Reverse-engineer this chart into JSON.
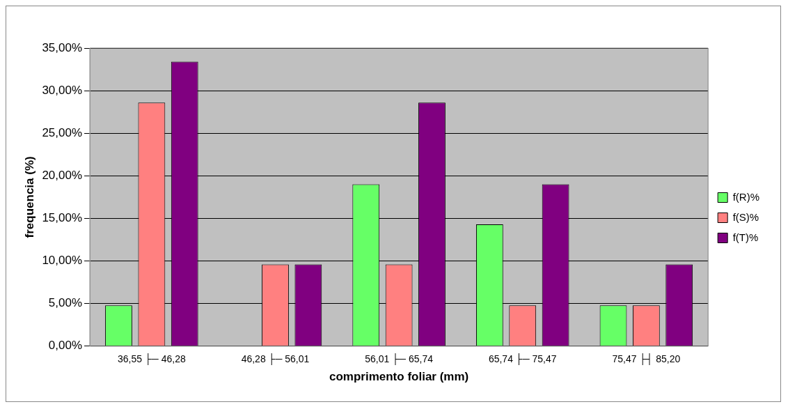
{
  "chart_data": {
    "type": "bar",
    "xlabel": "comprimento foliar (mm)",
    "ylabel": "frequencia (%)",
    "categories": [
      "36,55 ├─ 46,28",
      "46,28 ├─ 56,01",
      "56,01 ├─ 65,74",
      "65,74 ├─ 75,47",
      "75,47 ├┤ 85,20"
    ],
    "series": [
      {
        "name": "f(R)%",
        "color": "#66ff66",
        "values": [
          4.8,
          0,
          19.0,
          14.3,
          4.8
        ]
      },
      {
        "name": "f(S)%",
        "color": "#ff8080",
        "values": [
          28.6,
          9.6,
          9.6,
          4.8,
          4.8
        ]
      },
      {
        "name": "f(T)%",
        "color": "#800080",
        "values": [
          33.4,
          9.6,
          28.6,
          19.0,
          9.6
        ]
      }
    ],
    "ylim": [
      0,
      35
    ],
    "yticks": [
      {
        "value": 0,
        "label": "0,00%"
      },
      {
        "value": 5,
        "label": "5,00%"
      },
      {
        "value": 10,
        "label": "10,00%"
      },
      {
        "value": 15,
        "label": "15,00%"
      },
      {
        "value": 20,
        "label": "20,00%"
      },
      {
        "value": 25,
        "label": "25,00%"
      },
      {
        "value": 30,
        "label": "30,00%"
      },
      {
        "value": 35,
        "label": "35,00%"
      }
    ],
    "grid": "y",
    "legend": "right"
  }
}
